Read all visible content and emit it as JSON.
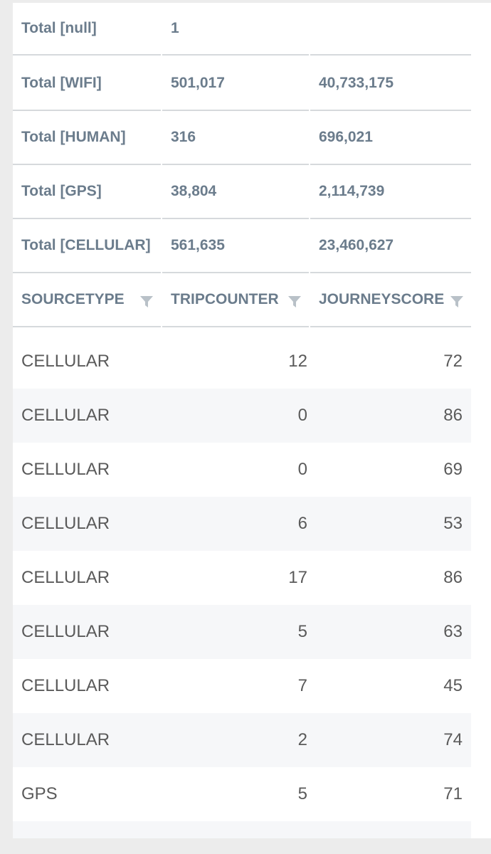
{
  "totals": [
    {
      "label": "Total [null]",
      "tripcounter": "1",
      "journeyscore": ""
    },
    {
      "label": "Total [WIFI]",
      "tripcounter": "501,017",
      "journeyscore": "40,733,175"
    },
    {
      "label": "Total [HUMAN]",
      "tripcounter": "316",
      "journeyscore": "696,021"
    },
    {
      "label": "Total [GPS]",
      "tripcounter": "38,804",
      "journeyscore": "2,114,739"
    },
    {
      "label": "Total [CELLULAR]",
      "tripcounter": "561,635",
      "journeyscore": "23,460,627"
    }
  ],
  "columns": [
    {
      "label": "SOURCETYPE",
      "icon": "filter-icon"
    },
    {
      "label": "TRIPCOUNTER",
      "icon": "filter-icon"
    },
    {
      "label": "JOURNEYSCORE",
      "icon": "filter-icon"
    }
  ],
  "rows": [
    {
      "sourcetype": "CELLULAR",
      "tripcounter": "12",
      "journeyscore": "72"
    },
    {
      "sourcetype": "CELLULAR",
      "tripcounter": "0",
      "journeyscore": "86"
    },
    {
      "sourcetype": "CELLULAR",
      "tripcounter": "0",
      "journeyscore": "69"
    },
    {
      "sourcetype": "CELLULAR",
      "tripcounter": "6",
      "journeyscore": "53"
    },
    {
      "sourcetype": "CELLULAR",
      "tripcounter": "17",
      "journeyscore": "86"
    },
    {
      "sourcetype": "CELLULAR",
      "tripcounter": "5",
      "journeyscore": "63"
    },
    {
      "sourcetype": "CELLULAR",
      "tripcounter": "7",
      "journeyscore": "45"
    },
    {
      "sourcetype": "CELLULAR",
      "tripcounter": "2",
      "journeyscore": "74"
    },
    {
      "sourcetype": "GPS",
      "tripcounter": "5",
      "journeyscore": "71"
    }
  ],
  "colors": {
    "header_text": "#6b7c8c",
    "row_text": "#5a5a5a",
    "alt_row": "#f6f7f9",
    "divider": "#d6d9dc",
    "filter_icon": "#b9c1c8"
  }
}
